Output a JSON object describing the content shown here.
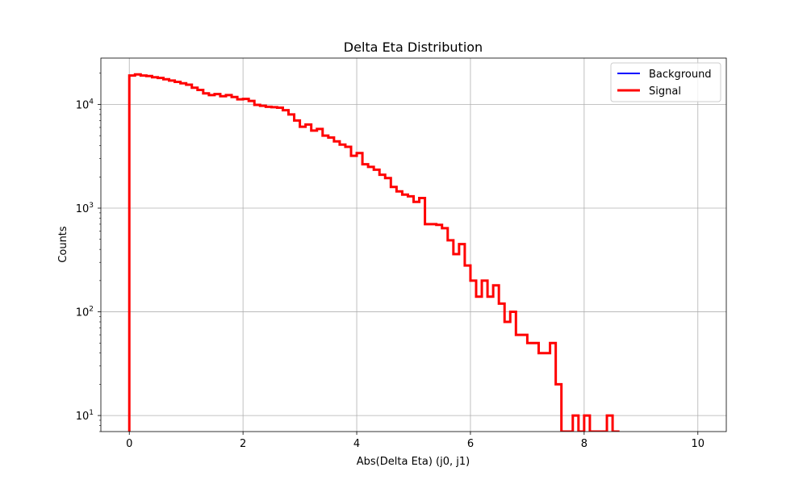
{
  "chart_data": {
    "type": "histogram",
    "title": "Delta Eta Distribution",
    "xlabel": "Abs(Delta Eta) (j0, j1)",
    "ylabel": "Counts",
    "xlim": [
      -0.5,
      10.5
    ],
    "ylim": [
      7,
      28000
    ],
    "yscale": "log",
    "grid": true,
    "legend_position": "top-right",
    "x_ticks": [
      0,
      2,
      4,
      6,
      8,
      10
    ],
    "y_ticks": [
      10,
      100,
      1000,
      10000
    ],
    "y_tick_labels": [
      {
        "base": "10",
        "exp": "1"
      },
      {
        "base": "10",
        "exp": "2"
      },
      {
        "base": "10",
        "exp": "3"
      },
      {
        "base": "10",
        "exp": "4"
      }
    ],
    "bin_edges_start": 0,
    "bin_width": 0.1,
    "series": [
      {
        "name": "Background",
        "color": "#0000ff",
        "values": []
      },
      {
        "name": "Signal",
        "color": "#ff0000",
        "values": [
          19000,
          19500,
          19000,
          18800,
          18300,
          18000,
          17500,
          17000,
          16500,
          16000,
          15500,
          14500,
          13800,
          12800,
          12300,
          12600,
          12000,
          12300,
          11800,
          11200,
          11300,
          10800,
          9900,
          9700,
          9500,
          9400,
          9300,
          8800,
          8000,
          7000,
          6100,
          6400,
          5600,
          5800,
          5000,
          4800,
          4400,
          4100,
          3900,
          3200,
          3400,
          2650,
          2500,
          2350,
          2100,
          1950,
          1600,
          1450,
          1350,
          1300,
          1150,
          1250,
          700,
          700,
          690,
          640,
          490,
          360,
          450,
          280,
          200,
          140,
          200,
          140,
          180,
          120,
          80,
          100,
          60,
          60,
          50,
          50,
          40,
          40,
          50,
          20,
          6,
          6,
          10,
          6,
          10,
          6,
          6,
          6,
          10,
          6
        ]
      }
    ]
  }
}
